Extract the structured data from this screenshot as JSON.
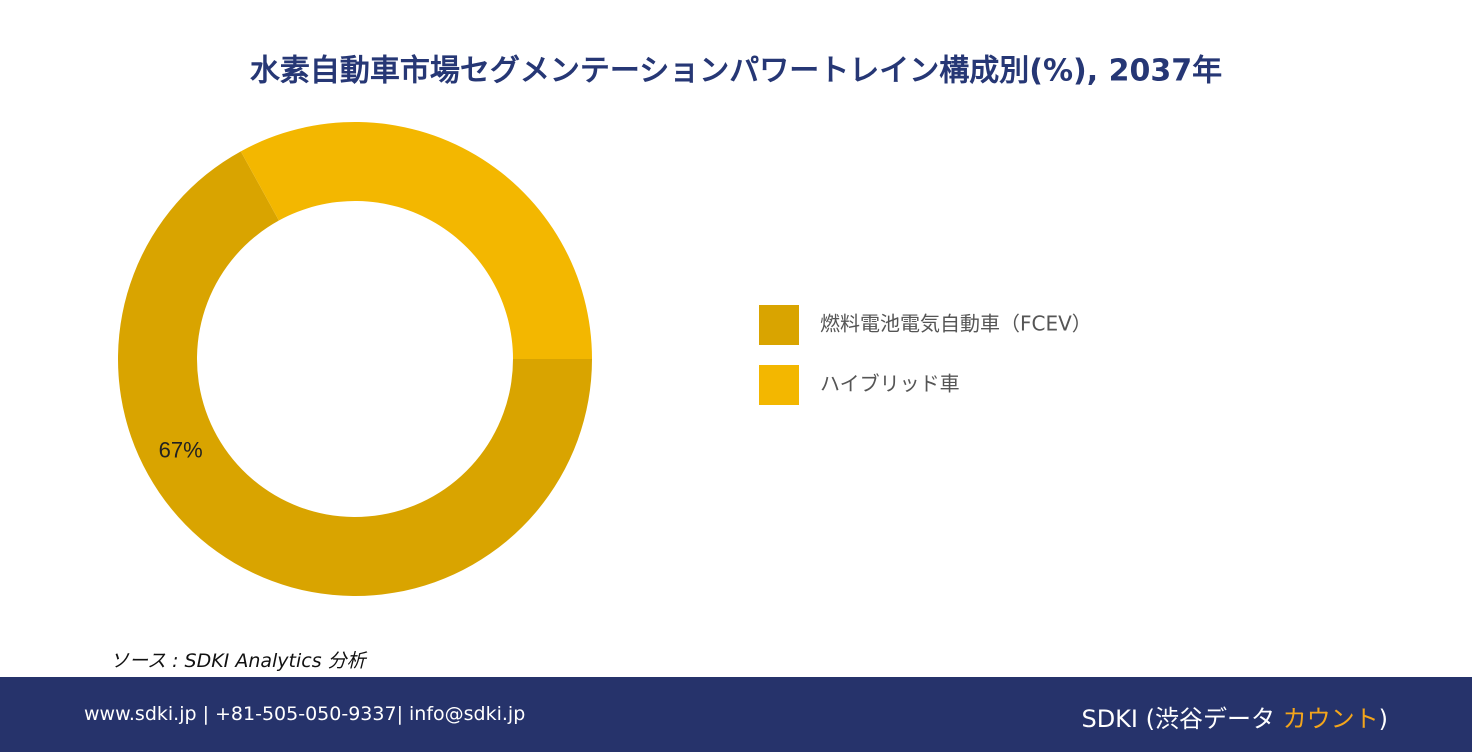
{
  "chart_data": {
    "type": "donut",
    "title": "水素自動車市場セグメンテーションパワートレイン構成別(%), 2037年",
    "categories": [
      "燃料電池電気自動車（FCEV）",
      "ハイブリッド車"
    ],
    "values": [
      67,
      33
    ],
    "value_labels": [
      "67%",
      null
    ],
    "colors": [
      "#d9a400",
      "#f3b700"
    ],
    "legend": "right"
  },
  "source": "ソース : SDKI Analytics 分析",
  "footer": {
    "contact": "www.sdki.jp | +81-505-050-9337| info@sdki.jp",
    "brand_prefix": "SDKI (渋谷データ ",
    "brand_highlight": "カウント",
    "brand_suffix": ")"
  }
}
